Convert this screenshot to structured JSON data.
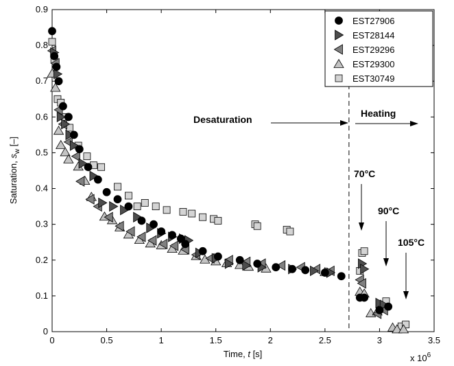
{
  "chart_data": {
    "type": "scatter",
    "xlabel_prefix": "Time, ",
    "xlabel_var": "t",
    "xlabel_suffix": " [s]",
    "ylabel_prefix": "Saturation, ",
    "ylabel_var": "s",
    "ylabel_sub": "w",
    "ylabel_suffix": " [–]",
    "x_multiplier_base": "x 10",
    "x_multiplier_exp": "6",
    "xlim": [
      0,
      3.5
    ],
    "ylim": [
      0,
      0.9
    ],
    "xticks": [
      "0",
      "0.5",
      "1",
      "1.5",
      "2",
      "2.5",
      "3",
      "3.5"
    ],
    "yticks": [
      "0",
      "0.1",
      "0.2",
      "0.3",
      "0.4",
      "0.5",
      "0.6",
      "0.7",
      "0.8",
      "0.9"
    ],
    "grid": false,
    "legend_position": "top-right",
    "annotations": {
      "desaturation": "Desaturation",
      "heating": "Heating",
      "t70": "70°C",
      "t90": "90°C",
      "t105": "105°C"
    },
    "divider_x": 2.72,
    "series": [
      {
        "name": "EST27906",
        "marker": "circle",
        "color": "#000000",
        "points": [
          [
            0.0,
            0.84
          ],
          [
            0.02,
            0.77
          ],
          [
            0.04,
            0.74
          ],
          [
            0.06,
            0.7
          ],
          [
            0.1,
            0.63
          ],
          [
            0.15,
            0.6
          ],
          [
            0.2,
            0.55
          ],
          [
            0.25,
            0.51
          ],
          [
            0.33,
            0.46
          ],
          [
            0.42,
            0.425
          ],
          [
            0.5,
            0.39
          ],
          [
            0.6,
            0.37
          ],
          [
            0.7,
            0.35
          ],
          [
            0.82,
            0.31
          ],
          [
            0.93,
            0.3
          ],
          [
            1.0,
            0.28
          ],
          [
            1.1,
            0.27
          ],
          [
            1.18,
            0.26
          ],
          [
            1.22,
            0.245
          ],
          [
            1.38,
            0.225
          ],
          [
            1.52,
            0.21
          ],
          [
            1.72,
            0.2
          ],
          [
            1.88,
            0.19
          ],
          [
            2.05,
            0.18
          ],
          [
            2.2,
            0.175
          ],
          [
            2.32,
            0.172
          ],
          [
            2.5,
            0.165
          ],
          [
            2.65,
            0.155
          ],
          [
            2.82,
            0.095
          ],
          [
            2.86,
            0.095
          ],
          [
            3.0,
            0.06
          ],
          [
            3.08,
            0.07
          ]
        ]
      },
      {
        "name": "EST28144",
        "marker": "triangle-right",
        "color": "#4d4d4d",
        "points": [
          [
            0.02,
            0.78
          ],
          [
            0.05,
            0.72
          ],
          [
            0.08,
            0.6
          ],
          [
            0.12,
            0.58
          ],
          [
            0.16,
            0.55
          ],
          [
            0.2,
            0.52
          ],
          [
            0.28,
            0.47
          ],
          [
            0.38,
            0.435
          ],
          [
            0.46,
            0.36
          ],
          [
            0.56,
            0.35
          ],
          [
            0.66,
            0.34
          ],
          [
            0.78,
            0.32
          ],
          [
            0.9,
            0.29
          ],
          [
            1.0,
            0.275
          ],
          [
            1.1,
            0.265
          ],
          [
            1.2,
            0.26
          ],
          [
            1.25,
            0.255
          ],
          [
            1.35,
            0.22
          ],
          [
            1.5,
            0.205
          ],
          [
            1.62,
            0.19
          ],
          [
            1.78,
            0.185
          ],
          [
            1.92,
            0.18
          ],
          [
            2.2,
            0.175
          ],
          [
            2.4,
            0.17
          ],
          [
            2.55,
            0.165
          ],
          [
            2.84,
            0.19
          ],
          [
            2.86,
            0.175
          ],
          [
            3.0,
            0.08
          ],
          [
            3.04,
            0.075
          ]
        ]
      },
      {
        "name": "EST29296",
        "marker": "triangle-left",
        "color": "#808080",
        "points": [
          [
            0.0,
            0.785
          ],
          [
            0.03,
            0.75
          ],
          [
            0.06,
            0.62
          ],
          [
            0.1,
            0.58
          ],
          [
            0.15,
            0.53
          ],
          [
            0.22,
            0.49
          ],
          [
            0.26,
            0.42
          ],
          [
            0.35,
            0.37
          ],
          [
            0.42,
            0.35
          ],
          [
            0.52,
            0.32
          ],
          [
            0.62,
            0.295
          ],
          [
            0.72,
            0.28
          ],
          [
            0.82,
            0.265
          ],
          [
            0.92,
            0.255
          ],
          [
            1.02,
            0.245
          ],
          [
            1.12,
            0.24
          ],
          [
            1.22,
            0.23
          ],
          [
            1.32,
            0.215
          ],
          [
            1.45,
            0.205
          ],
          [
            1.62,
            0.2
          ],
          [
            1.78,
            0.195
          ],
          [
            1.92,
            0.19
          ],
          [
            2.1,
            0.185
          ],
          [
            2.28,
            0.18
          ],
          [
            2.42,
            0.175
          ],
          [
            2.55,
            0.17
          ],
          [
            2.82,
            0.145
          ],
          [
            2.84,
            0.135
          ],
          [
            2.98,
            0.05
          ],
          [
            3.04,
            0.06
          ]
        ]
      },
      {
        "name": "EST29300",
        "marker": "triangle-up",
        "color": "#c4c4c4",
        "points": [
          [
            0.0,
            0.72
          ],
          [
            0.03,
            0.68
          ],
          [
            0.06,
            0.56
          ],
          [
            0.08,
            0.52
          ],
          [
            0.12,
            0.5
          ],
          [
            0.15,
            0.48
          ],
          [
            0.24,
            0.46
          ],
          [
            0.3,
            0.42
          ],
          [
            0.36,
            0.375
          ],
          [
            0.48,
            0.32
          ],
          [
            0.55,
            0.31
          ],
          [
            0.62,
            0.29
          ],
          [
            0.7,
            0.27
          ],
          [
            0.8,
            0.255
          ],
          [
            0.9,
            0.245
          ],
          [
            1.0,
            0.24
          ],
          [
            1.1,
            0.23
          ],
          [
            1.2,
            0.225
          ],
          [
            1.32,
            0.21
          ],
          [
            1.4,
            0.2
          ],
          [
            1.5,
            0.195
          ],
          [
            1.6,
            0.19
          ],
          [
            1.72,
            0.185
          ],
          [
            1.8,
            0.18
          ],
          [
            1.96,
            0.175
          ],
          [
            2.5,
            0.165
          ],
          [
            2.82,
            0.11
          ],
          [
            2.86,
            0.105
          ],
          [
            2.92,
            0.05
          ],
          [
            2.98,
            0.055
          ],
          [
            3.12,
            0.01
          ],
          [
            3.16,
            0.005
          ],
          [
            3.22,
            0.005
          ]
        ]
      },
      {
        "name": "EST30749",
        "marker": "square",
        "color": "#d4d4d4",
        "points": [
          [
            0.0,
            0.81
          ],
          [
            0.02,
            0.76
          ],
          [
            0.05,
            0.65
          ],
          [
            0.08,
            0.64
          ],
          [
            0.12,
            0.6
          ],
          [
            0.16,
            0.57
          ],
          [
            0.24,
            0.52
          ],
          [
            0.32,
            0.49
          ],
          [
            0.38,
            0.465
          ],
          [
            0.45,
            0.46
          ],
          [
            0.6,
            0.405
          ],
          [
            0.7,
            0.38
          ],
          [
            0.78,
            0.35
          ],
          [
            0.85,
            0.36
          ],
          [
            0.95,
            0.35
          ],
          [
            1.05,
            0.34
          ],
          [
            1.2,
            0.335
          ],
          [
            1.28,
            0.33
          ],
          [
            1.38,
            0.32
          ],
          [
            1.48,
            0.315
          ],
          [
            1.52,
            0.31
          ],
          [
            1.86,
            0.3
          ],
          [
            1.88,
            0.295
          ],
          [
            2.15,
            0.285
          ],
          [
            2.18,
            0.28
          ],
          [
            2.82,
            0.17
          ],
          [
            2.84,
            0.22
          ],
          [
            2.86,
            0.225
          ],
          [
            3.0,
            0.07
          ],
          [
            3.06,
            0.085
          ],
          [
            3.2,
            0.015
          ],
          [
            3.24,
            0.02
          ]
        ]
      }
    ]
  }
}
